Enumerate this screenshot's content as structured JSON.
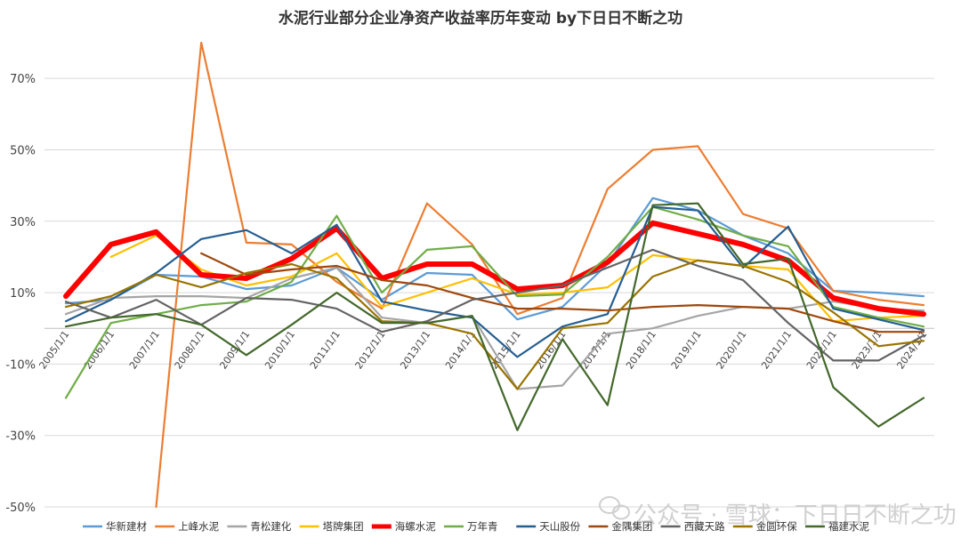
{
  "chart_data": {
    "type": "line",
    "title": "水泥行业部分企业净资产收益率历年变动 by下日日不断之功",
    "xlabel": "",
    "ylabel": "",
    "ylim": [
      -50,
      80
    ],
    "y_ticks": [
      70,
      50,
      30,
      10,
      -10,
      -30,
      -50
    ],
    "y_tick_labels": [
      "70%",
      "50%",
      "30%",
      "10%",
      "-10%",
      "-30%",
      "-50%"
    ],
    "grid": true,
    "legend_position": "bottom",
    "categories": [
      "2005/1/1",
      "2006/1/1",
      "2007/1/1",
      "2008/1/1",
      "2009/1/1",
      "2010/1/1",
      "2011/1/1",
      "2012/1/1",
      "2013/1/1",
      "2014/1/1",
      "2015/1/1",
      "2016/1/1",
      "2017/1/1",
      "2018/1/1",
      "2019/1/1",
      "2020/1/1",
      "2021/1/1",
      "2022/1/1",
      "2023/1/1",
      "2024/1/1"
    ],
    "series": [
      {
        "name": "华新建材",
        "color": "#5b9bd5",
        "values": [
          7,
          8,
          15,
          14.5,
          11,
          12,
          17,
          8,
          15.5,
          15,
          2.5,
          6,
          18,
          36.5,
          33,
          26,
          21,
          10.5,
          10,
          9
        ]
      },
      {
        "name": "上峰水泥",
        "color": "#ed7d31",
        "values": [
          null,
          null,
          -50,
          80,
          24,
          23.5,
          13,
          5.5,
          35,
          23.5,
          4,
          8.5,
          39,
          50,
          51,
          32,
          28,
          10.5,
          8,
          6.5
        ]
      },
      {
        "name": "青松建化",
        "color": "#a5a5a5",
        "values": [
          4,
          8.5,
          9,
          9,
          8.5,
          14,
          17,
          3,
          1.5,
          3.5,
          -17,
          -16,
          -1.5,
          0,
          3.5,
          6,
          5.5,
          7.5,
          5.5,
          5
        ]
      },
      {
        "name": "塔牌集团",
        "color": "#ffc000",
        "values": [
          null,
          20,
          26,
          16.5,
          12,
          14.5,
          21,
          6,
          10,
          14,
          9.5,
          10,
          11.5,
          20.5,
          19,
          17.5,
          16.5,
          2,
          3,
          3.5
        ]
      },
      {
        "name": "海螺水泥",
        "color": "#ff0000",
        "values": [
          9,
          23.5,
          27,
          15,
          14,
          19.5,
          28,
          14,
          18,
          18,
          11,
          12,
          18.5,
          29.5,
          26.5,
          23.5,
          19,
          8.5,
          5.5,
          4
        ]
      },
      {
        "name": "万年青",
        "color": "#70ad47",
        "values": [
          -19.5,
          1.5,
          4,
          6.5,
          7.5,
          13,
          31.5,
          10,
          22,
          23,
          9,
          9.5,
          20,
          34,
          30.5,
          26,
          23,
          6,
          3,
          0.5
        ]
      },
      {
        "name": "天山股份",
        "color": "#255e91",
        "values": [
          2,
          8,
          15.5,
          25,
          27.5,
          21,
          29,
          7.5,
          5,
          3,
          -8,
          0.5,
          4,
          34,
          33,
          17,
          28.5,
          5.5,
          2.5,
          -0.5
        ]
      },
      {
        "name": "金隅集团",
        "color": "#9e480e",
        "values": [
          null,
          null,
          null,
          21,
          15,
          16.5,
          17.5,
          13.5,
          12,
          8.5,
          5.5,
          5.5,
          5,
          6,
          6.5,
          6,
          5.5,
          2,
          -1,
          -1
        ]
      },
      {
        "name": "西藏天路",
        "color": "#636363",
        "values": [
          7.5,
          3,
          8,
          1,
          8.5,
          8,
          5.5,
          -1,
          2,
          8,
          10,
          12,
          17,
          22,
          17.5,
          13.5,
          1.5,
          -9,
          -9,
          -2
        ]
      },
      {
        "name": "金圆环保",
        "color": "#997300",
        "values": [
          6,
          9,
          15,
          11.5,
          15.5,
          18,
          14,
          2,
          1.5,
          -1.5,
          -17,
          0,
          1.5,
          14.5,
          19,
          17.5,
          13,
          4.5,
          -5,
          -3.5
        ]
      },
      {
        "name": "福建水泥",
        "color": "#43682b",
        "values": [
          0.5,
          3,
          4,
          1,
          -7.5,
          1,
          10,
          1.5,
          1.5,
          3.5,
          -28.5,
          -3,
          -21.5,
          34.5,
          35,
          18,
          19.5,
          -16.5,
          -27.5,
          -19.5
        ]
      }
    ]
  },
  "watermark": {
    "icon": "wechat-icon",
    "text": "公众号 · 雪球：下日日不断之功"
  }
}
